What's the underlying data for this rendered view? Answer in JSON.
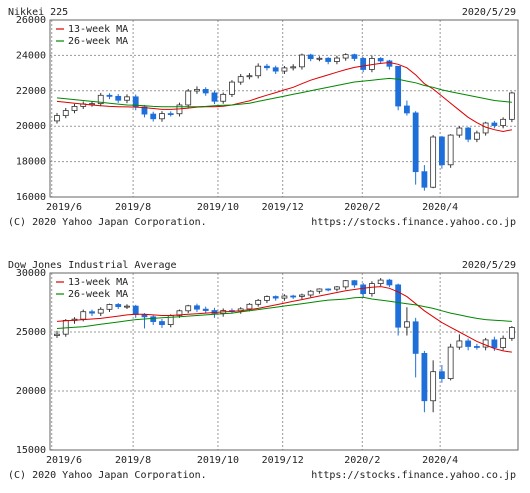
{
  "chart_data": [
    {
      "type": "candlestick",
      "title": "Nikkei 225",
      "date": "2020/5/29",
      "copyright": "(C) 2020 Yahoo Japan Corporation.",
      "source": "https://stocks.finance.yahoo.co.jp",
      "up_color": "#ffffff",
      "down_color": "#1e6fd9",
      "grid": true,
      "legend": "upper left",
      "xlim": [
        -0.8,
        52.7
      ],
      "xticks": [
        {
          "value": -0.6,
          "label": "2019/6"
        },
        {
          "value": 8.7,
          "label": "2019/8"
        },
        {
          "value": 18.4,
          "label": "2019/10"
        },
        {
          "value": 25.8,
          "label": "2019/12"
        },
        {
          "value": 34.9,
          "label": "2020/2"
        },
        {
          "value": 43.8,
          "label": "2020/4"
        }
      ],
      "ylim": [
        16000,
        26000
      ],
      "yticks": [
        16000,
        18000,
        20000,
        22000,
        24000,
        26000
      ],
      "open": [
        20300,
        20601,
        20885,
        21117,
        21259,
        21276,
        21746,
        21686,
        21467,
        21658,
        21087,
        20685,
        20419,
        20711,
        20704,
        21200,
        21988,
        22079,
        21879,
        21410,
        21799,
        22492,
        22800,
        22851,
        23391,
        23303,
        23112,
        23294,
        23354,
        24023,
        23816,
        23837,
        23656,
        23850,
        24041,
        23827,
        23205,
        23827,
        23688,
        23386,
        21142,
        20749,
        17431,
        16552,
        19389,
        17820,
        19498,
        19897,
        19262,
        19619,
        20179,
        20037,
        20388
      ],
      "high": [
        20750,
        21030,
        21260,
        21400,
        21420,
        21880,
        21860,
        21820,
        21800,
        21790,
        21200,
        20820,
        20850,
        20840,
        21330,
        22100,
        22250,
        22200,
        22000,
        21900,
        22600,
        22950,
        23000,
        23550,
        23520,
        23420,
        23400,
        23500,
        24100,
        24090,
        23950,
        23900,
        23980,
        24120,
        24100,
        23900,
        23990,
        23900,
        23750,
        23400,
        21450,
        20850,
        17800,
        19500,
        19450,
        19550,
        20000,
        19950,
        19750,
        20250,
        20300,
        20500,
        21950
      ],
      "low": [
        20150,
        20450,
        20730,
        20970,
        21100,
        21130,
        21530,
        21320,
        21300,
        20900,
        20500,
        20260,
        20250,
        20550,
        20550,
        21050,
        21830,
        21720,
        21250,
        21270,
        21650,
        22340,
        22650,
        22700,
        23150,
        22950,
        22950,
        23150,
        23200,
        23670,
        23670,
        23500,
        23500,
        23700,
        23680,
        23050,
        23050,
        23530,
        23200,
        20900,
        20600,
        16700,
        16358,
        16500,
        17600,
        17650,
        19350,
        19100,
        19100,
        19470,
        19880,
        19880,
        20230
      ],
      "close": [
        20601,
        20885,
        21117,
        21259,
        21276,
        21746,
        21686,
        21467,
        21658,
        21087,
        20685,
        20419,
        20711,
        20704,
        21200,
        21988,
        22079,
        21879,
        21410,
        21799,
        22492,
        22800,
        22851,
        23391,
        23303,
        23112,
        23294,
        23354,
        24023,
        23816,
        23837,
        23656,
        23850,
        24041,
        23827,
        23205,
        23827,
        23688,
        23386,
        21142,
        20749,
        17431,
        16552,
        19389,
        17820,
        19498,
        19897,
        19262,
        19619,
        20179,
        20037,
        20388,
        21877
      ],
      "series": [
        {
          "name": "13-week MA",
          "color": "#dd0000",
          "values": [
            21400,
            21350,
            21300,
            21250,
            21200,
            21150,
            21120,
            21100,
            21090,
            21080,
            21050,
            21000,
            20950,
            20950,
            20980,
            21020,
            21080,
            21100,
            21100,
            21130,
            21200,
            21320,
            21430,
            21600,
            21750,
            21900,
            22050,
            22200,
            22400,
            22600,
            22750,
            22900,
            23050,
            23200,
            23320,
            23400,
            23480,
            23550,
            23600,
            23500,
            23300,
            22900,
            22400,
            22100,
            21700,
            21300,
            20900,
            20500,
            20200,
            19950,
            19800,
            19700,
            19800
          ]
        },
        {
          "name": "26-week MA",
          "color": "#008800",
          "values": [
            21600,
            21550,
            21500,
            21450,
            21400,
            21350,
            21300,
            21250,
            21200,
            21180,
            21150,
            21120,
            21100,
            21100,
            21100,
            21100,
            21100,
            21120,
            21150,
            21180,
            21200,
            21250,
            21300,
            21400,
            21500,
            21600,
            21700,
            21800,
            21900,
            22000,
            22100,
            22200,
            22300,
            22400,
            22500,
            22550,
            22600,
            22650,
            22700,
            22650,
            22550,
            22450,
            22300,
            22200,
            22050,
            21950,
            21850,
            21750,
            21650,
            21550,
            21450,
            21400,
            21350
          ]
        }
      ]
    },
    {
      "type": "candlestick",
      "title": "Dow Jones Industrial Average",
      "date": "2020/5/29",
      "copyright": "(C) 2020 Yahoo Japan Corporation.",
      "source": "https://stocks.finance.yahoo.co.jp",
      "up_color": "#ffffff",
      "down_color": "#1e6fd9",
      "grid": true,
      "legend": "upper left",
      "xlim": [
        -0.8,
        52.7
      ],
      "xticks": [
        {
          "value": -0.6,
          "label": "2019/6"
        },
        {
          "value": 8.7,
          "label": "2019/8"
        },
        {
          "value": 18.4,
          "label": "2019/10"
        },
        {
          "value": 25.8,
          "label": "2019/12"
        },
        {
          "value": 34.9,
          "label": "2020/2"
        },
        {
          "value": 43.8,
          "label": "2020/4"
        }
      ],
      "ylim": [
        15000,
        30000
      ],
      "yticks": [
        15000,
        20000,
        25000,
        30000
      ],
      "open": [
        24700,
        24815,
        25983,
        26090,
        26719,
        26600,
        26922,
        27332,
        27154,
        27192,
        26485,
        26287,
        25886,
        25629,
        26403,
        26797,
        27220,
        26935,
        26820,
        26573,
        26817,
        26770,
        26958,
        27347,
        27681,
        28005,
        27876,
        28051,
        28015,
        28135,
        28455,
        28645,
        28634,
        28823,
        29348,
        28989,
        28256,
        29102,
        29398,
        28992,
        25409,
        25864,
        23186,
        19174,
        21637,
        21053,
        23719,
        24242,
        23775,
        23724,
        24331,
        23685,
        24465
      ],
      "high": [
        25100,
        26100,
        26250,
        26900,
        26900,
        27100,
        27400,
        27450,
        27350,
        27300,
        26600,
        26400,
        26100,
        26500,
        26900,
        27300,
        27400,
        27150,
        27050,
        27000,
        27000,
        27100,
        27450,
        27800,
        28100,
        28100,
        28200,
        28150,
        28250,
        28550,
        28700,
        28700,
        28900,
        29400,
        29400,
        29150,
        29300,
        29570,
        29500,
        29100,
        27100,
        26200,
        23400,
        22600,
        22200,
        24000,
        24800,
        24450,
        24000,
        24500,
        24600,
        24700,
        25500
      ],
      "low": [
        24500,
        24600,
        25700,
        25900,
        26350,
        26350,
        26700,
        26950,
        26950,
        26200,
        25300,
        25600,
        25350,
        25400,
        26200,
        26600,
        26700,
        26600,
        26200,
        26300,
        26550,
        26550,
        26750,
        27150,
        27450,
        27650,
        27650,
        27800,
        27800,
        27950,
        28250,
        28450,
        28450,
        28600,
        28750,
        27900,
        28000,
        28900,
        28800,
        24700,
        24700,
        21150,
        18200,
        18200,
        20700,
        20900,
        23500,
        23450,
        23500,
        23450,
        23400,
        23450,
        24250
      ],
      "close": [
        24815,
        25983,
        26090,
        26719,
        26600,
        26922,
        27332,
        27154,
        27192,
        26485,
        26287,
        25886,
        25629,
        26403,
        26797,
        27220,
        26935,
        26820,
        26573,
        26817,
        26770,
        26958,
        27347,
        27681,
        28005,
        27876,
        28051,
        28015,
        28135,
        28455,
        28645,
        28634,
        28823,
        29348,
        28989,
        28256,
        29102,
        29398,
        28992,
        25409,
        25864,
        23186,
        19174,
        21637,
        21053,
        23719,
        24242,
        23775,
        23724,
        24331,
        23685,
        24465,
        25383
      ],
      "series": [
        {
          "name": "13-week MA",
          "color": "#dd0000",
          "values": [
            25900,
            25950,
            26000,
            26050,
            26100,
            26150,
            26250,
            26350,
            26450,
            26500,
            26500,
            26450,
            26400,
            26400,
            26450,
            26500,
            26550,
            26600,
            26650,
            26700,
            26750,
            26800,
            26900,
            27000,
            27150,
            27300,
            27450,
            27600,
            27750,
            27900,
            28050,
            28200,
            28350,
            28500,
            28600,
            28700,
            28800,
            28850,
            28700,
            28400,
            28000,
            27400,
            26800,
            26300,
            25800,
            25400,
            25000,
            24600,
            24200,
            23900,
            23600,
            23400,
            23300
          ]
        },
        {
          "name": "26-week MA",
          "color": "#008800",
          "values": [
            25300,
            25350,
            25400,
            25450,
            25550,
            25650,
            25750,
            25850,
            25950,
            26050,
            26100,
            26150,
            26200,
            26250,
            26300,
            26350,
            26400,
            26450,
            26500,
            26550,
            26600,
            26700,
            26800,
            26900,
            27000,
            27100,
            27200,
            27300,
            27400,
            27500,
            27600,
            27700,
            27750,
            27800,
            27900,
            27950,
            27800,
            27700,
            27600,
            27500,
            27400,
            27300,
            27150,
            27000,
            26800,
            26600,
            26450,
            26300,
            26150,
            26050,
            26000,
            25950,
            25900
          ]
        }
      ]
    }
  ]
}
